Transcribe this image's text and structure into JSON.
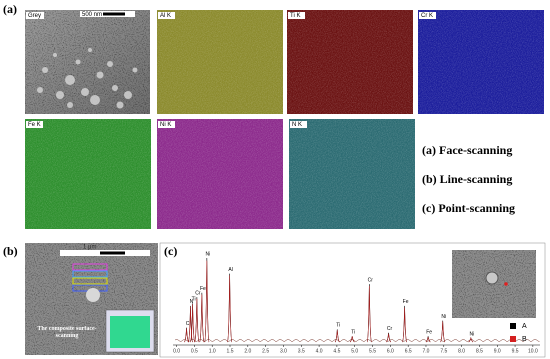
{
  "panel_a": {
    "label": "(a)",
    "grey_label": "Grey",
    "scale_bar": "500 nm",
    "maps": [
      {
        "label": "Al K",
        "color": "#8b8a2c"
      },
      {
        "label": "Ti K",
        "color": "#6b1212"
      },
      {
        "label": "Cr K",
        "color": "#1b1d9c"
      },
      {
        "label": "Fe K",
        "color": "#2d8f2d"
      },
      {
        "label": "Ni K",
        "color": "#8c2a8c"
      },
      {
        "label": "N K",
        "color": "#2b6b72"
      }
    ],
    "modes": [
      "(a) Face-scanning",
      "(b) Line-scanning",
      "(c) Point-scanning"
    ]
  },
  "panel_b": {
    "label": "(b)",
    "scale_bar": "1 μm",
    "caption": "The composite surface-scanning"
  },
  "chart_data": {
    "type": "spectrum",
    "label": "(c)",
    "peaks": {
      "x": [
        0.28,
        0.39,
        0.45,
        0.57,
        0.71,
        0.85,
        1.49,
        4.51,
        4.93,
        5.41,
        5.95,
        6.4,
        7.06,
        7.47,
        8.26
      ],
      "labels": [
        "C",
        "N",
        "Ti",
        "Cr",
        "Fe",
        "Ni",
        "Al",
        "Ti",
        "Ti",
        "Cr",
        "Cr",
        "Fe",
        "Fe",
        "Ni",
        "Ni"
      ]
    },
    "series": [
      {
        "name": "A",
        "color": "#000000",
        "values": [
          20,
          45,
          48,
          55,
          60,
          100,
          82,
          18,
          10,
          70,
          14,
          45,
          10,
          28,
          8
        ]
      },
      {
        "name": "B",
        "color": "#d42020",
        "values": [
          19,
          44,
          47,
          53,
          58,
          97,
          80,
          17,
          10,
          68,
          13,
          43,
          9,
          27,
          8
        ]
      }
    ],
    "xlim": [
      -0.1,
      10.2
    ],
    "ylim": [
      0,
      100
    ],
    "xticks": [
      {
        "value": 0,
        "label": "0.0"
      },
      {
        "value": 0.5,
        "label": "0.5"
      },
      {
        "value": 1,
        "label": "1.0"
      },
      {
        "value": 1.5,
        "label": "1.5"
      },
      {
        "value": 2,
        "label": "2.0"
      },
      {
        "value": 2.5,
        "label": "2.5"
      },
      {
        "value": 3,
        "label": "3.0"
      },
      {
        "value": 3.5,
        "label": "3.5"
      },
      {
        "value": 4,
        "label": "4.0"
      },
      {
        "value": 4.5,
        "label": "4.5"
      },
      {
        "value": 5,
        "label": "5.0"
      },
      {
        "value": 5.5,
        "label": "5.5"
      },
      {
        "value": 6,
        "label": "6.0"
      },
      {
        "value": 6.5,
        "label": "6.5"
      },
      {
        "value": 7,
        "label": "7.0"
      },
      {
        "value": 7.5,
        "label": "7.5"
      },
      {
        "value": 8,
        "label": "8.0"
      },
      {
        "value": 8.5,
        "label": "8.5"
      },
      {
        "value": 9,
        "label": "9.0"
      },
      {
        "value": 9.5,
        "label": "9.5"
      },
      {
        "value": 10,
        "label": "10.0"
      }
    ]
  }
}
